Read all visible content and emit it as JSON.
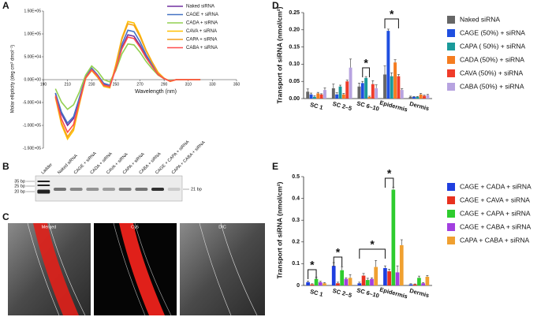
{
  "panel_labels": [
    "A",
    "B",
    "C",
    "D",
    "E"
  ],
  "chart_data": [
    {
      "type": "line",
      "xlabel": "Wavelength (nm)",
      "ylabel": "Molar ellipticity (deg cm² dmol⁻¹)",
      "xlim": [
        190,
        350
      ],
      "xticks": [
        190,
        210,
        230,
        250,
        270,
        290,
        310,
        330,
        350
      ],
      "ylim": [
        -150000,
        150000
      ],
      "yticks": [
        {
          "value": -150000,
          "label": "-1.50E+05"
        },
        {
          "value": -100000,
          "label": "-1.00E+05"
        },
        {
          "value": -50000,
          "label": "-5.00E+04"
        },
        {
          "value": 0,
          "label": "0.00E+00"
        },
        {
          "value": 50000,
          "label": "5.00E+04"
        },
        {
          "value": 100000,
          "label": "1.00E+05"
        },
        {
          "value": 150000,
          "label": "1.50E+05"
        }
      ],
      "x": [
        200,
        205,
        210,
        215,
        220,
        225,
        230,
        235,
        240,
        245,
        250,
        255,
        260,
        265,
        270,
        275,
        280,
        285,
        290,
        295,
        300,
        310,
        320
      ],
      "series": [
        {
          "name": "Naked siRNA",
          "color": "#7030a0",
          "values": [
            -30000,
            -75000,
            -100000,
            -85000,
            -40000,
            5000,
            25000,
            10000,
            -10000,
            -15000,
            25000,
            70000,
            98000,
            95000,
            75000,
            50000,
            30000,
            12000,
            2000,
            -3000,
            0,
            0,
            0
          ]
        },
        {
          "name": "CAGE + siRNA",
          "color": "#4472c4",
          "values": [
            -29000,
            -71000,
            -95000,
            -81000,
            -38000,
            5000,
            25000,
            10000,
            -8000,
            -12000,
            28000,
            77000,
            108000,
            105000,
            83000,
            55000,
            33000,
            13000,
            2000,
            -3000,
            0,
            0,
            0
          ]
        },
        {
          "name": "CADA + siRNA",
          "color": "#92d050",
          "values": [
            -20000,
            -49000,
            -65000,
            -55000,
            -26000,
            10000,
            30000,
            18000,
            0,
            -5000,
            20000,
            56000,
            78000,
            76000,
            60000,
            40000,
            24000,
            10000,
            2000,
            -2000,
            0,
            0,
            0
          ]
        },
        {
          "name": "CAVA + siRNA",
          "color": "#ffc000",
          "values": [
            -39000,
            -98000,
            -130000,
            -111000,
            -52000,
            3000,
            20000,
            5000,
            -15000,
            -18000,
            33000,
            91000,
            127000,
            124000,
            98000,
            65000,
            39000,
            16000,
            3000,
            -4000,
            0,
            0,
            0
          ]
        },
        {
          "name": "CAPA + siRNA",
          "color": "#f4a11d",
          "values": [
            -38000,
            -94000,
            -125000,
            -106000,
            -50000,
            3000,
            20000,
            5000,
            -14000,
            -17000,
            31000,
            88000,
            122000,
            119000,
            94000,
            63000,
            38000,
            15000,
            3000,
            -4000,
            0,
            0,
            0
          ]
        },
        {
          "name": "CABA + siRNA",
          "color": "#ff4d4d",
          "values": [
            -35000,
            -86000,
            -115000,
            -98000,
            -46000,
            4000,
            22000,
            8000,
            -12000,
            -15000,
            24000,
            67000,
            93000,
            90000,
            71000,
            48000,
            29000,
            11000,
            2000,
            -3000,
            0,
            0,
            0
          ]
        }
      ]
    },
    {
      "type": "bar",
      "ylabel": "Transport of siRNA (nmol/cm²)",
      "categories": [
        "SC 1",
        "SC 2–5",
        "SC 6–10",
        "Epidermis",
        "Dermis"
      ],
      "ylim": [
        0,
        0.25
      ],
      "yticks": [
        {
          "value": 0,
          "label": "0.00"
        },
        0.05,
        {
          "value": 0.1,
          "label": "0.10"
        },
        0.15,
        {
          "value": 0.2,
          "label": "0.20"
        },
        0.25
      ],
      "annotations": [
        "*",
        "*"
      ],
      "series": [
        {
          "name": "Naked siRNA",
          "color": "#666666",
          "values": [
            0.02,
            0.03,
            0.035,
            0.07,
            0.005
          ],
          "errors": [
            0.008,
            0.012,
            0.01,
            0.025,
            0.002
          ]
        },
        {
          "name": "CAGE (50%) + siRNA",
          "color": "#1f4fe0",
          "values": [
            0.012,
            0.012,
            0.045,
            0.197,
            0.005
          ],
          "errors": [
            0.004,
            0.005,
            0.005,
            0.005,
            0.001
          ]
        },
        {
          "name": "CAPA ( 50%) + siRNA",
          "color": "#1a9a9a",
          "values": [
            0.005,
            0.035,
            0.06,
            0.065,
            0.005
          ],
          "errors": [
            0.003,
            0.004,
            0.004,
            0.01,
            0.001
          ]
        },
        {
          "name": "CADA (50%) + siRNA",
          "color": "#f57c20",
          "values": [
            0.015,
            0.012,
            0.005,
            0.105,
            0.012
          ],
          "errors": [
            0.003,
            0.003,
            0.002,
            0.008,
            0.003
          ]
        },
        {
          "name": "CAVA (50%) + siRNA",
          "color": "#f03c2a",
          "values": [
            0.012,
            0.05,
            0.042,
            0.065,
            0.008
          ],
          "errors": [
            0.002,
            0.004,
            0.01,
            0.005,
            0.002
          ]
        },
        {
          "name": "CABA (50%) + siRNA",
          "color": "#b7a3e0",
          "values": [
            0.025,
            0.09,
            0.03,
            0.025,
            0.01
          ],
          "errors": [
            0.006,
            0.025,
            0.01,
            0.004,
            0.002
          ]
        }
      ]
    },
    {
      "type": "bar",
      "ylabel": "Transport of siRNA (nmol/cm²)",
      "categories": [
        "SC 1",
        "SC 2–5",
        "SC 6–10",
        "Epidermis",
        "Dermis"
      ],
      "ylim": [
        0,
        0.5
      ],
      "yticks": [
        0,
        0.1,
        0.2,
        0.3,
        0.4,
        0.5
      ],
      "annotations": [
        "*",
        "*",
        "*",
        "*"
      ],
      "series": [
        {
          "name": "CAGE + CADA + siRNA",
          "color": "#1f3fdf",
          "values": [
            0.015,
            0.09,
            0.01,
            0.08,
            0.005
          ],
          "errors": [
            0.005,
            0.015,
            0.005,
            0.01,
            0.003
          ]
        },
        {
          "name": "CAGE + CAVA + siRNA",
          "color": "#e8311f",
          "values": [
            0.005,
            0.01,
            0.045,
            0.065,
            0.005
          ],
          "errors": [
            0.003,
            0.005,
            0.01,
            0.01,
            0.002
          ]
        },
        {
          "name": "CAGE + CAPA + siRNA",
          "color": "#2ecc2e",
          "values": [
            0.03,
            0.07,
            0.025,
            0.44,
            0.035
          ],
          "errors": [
            0.008,
            0.015,
            0.008,
            0.01,
            0.008
          ]
        },
        {
          "name": "CAGE + CABA + siRNA",
          "color": "#a23fe0",
          "values": [
            0.015,
            0.03,
            0.03,
            0.06,
            0.01
          ],
          "errors": [
            0.004,
            0.005,
            0.005,
            0.03,
            0.003
          ]
        },
        {
          "name": "CAPA + CABA + siRNA",
          "color": "#f0a030",
          "values": [
            0.01,
            0.035,
            0.085,
            0.185,
            0.04
          ],
          "errors": [
            0.003,
            0.015,
            0.03,
            0.025,
            0.006
          ]
        }
      ]
    }
  ],
  "gel": {
    "lanes": [
      "Ladder",
      "Naked siRNA",
      "CAGE + siRNA",
      "CADA + siRNA",
      "CAVA + siRNA",
      "CAPA + siRNA",
      "CABA + siRNA",
      "CAGE + CAPA + siRNA",
      "CAPA + CABA + siRNA"
    ],
    "ladder_bands": [
      "35 bp",
      "25 bp",
      "20 bp"
    ],
    "product_band": "21 bp"
  },
  "micrographs": [
    "Merged",
    "Cy5",
    "DIC"
  ]
}
